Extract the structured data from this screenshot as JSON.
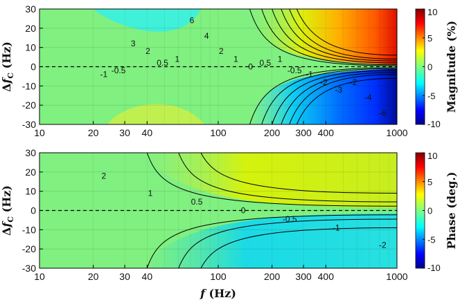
{
  "chart_data": [
    {
      "type": "contour",
      "ylabel_prefix": "Δ",
      "ylabel_var": "f",
      "ylabel_sub": "C",
      "ylabel_unit": "(Hz)",
      "xlabel_var": "",
      "xlabel_unit": "",
      "x_scale": "log",
      "xlim": [
        10,
        1000
      ],
      "ylim": [
        -30,
        30
      ],
      "x_ticks": [
        "10",
        "20",
        "30",
        "40",
        "100",
        "200",
        "300",
        "400",
        "1000"
      ],
      "x_tick_values": [
        10,
        20,
        30,
        40,
        100,
        200,
        300,
        400,
        1000
      ],
      "y_ticks": [
        "30",
        "20",
        "10",
        "0",
        "-10",
        "-20",
        "-30"
      ],
      "y_tick_values": [
        30,
        20,
        10,
        0,
        -10,
        -20,
        -30
      ],
      "colorbar_label": "Magnitude (%)",
      "colorbar_ticks": [
        "10",
        "5",
        "0",
        "-5",
        "-10"
      ],
      "clim": [
        -10,
        10
      ],
      "contour_labels": [
        "-1",
        "-0.5",
        "3",
        "2",
        "0.5",
        "1",
        "6",
        "4",
        "2",
        "1",
        "0",
        "0.5",
        "1",
        "-0.5",
        "-1",
        "-2",
        "-3",
        "-2",
        "-4",
        "-6"
      ],
      "grid": true
    },
    {
      "type": "contour",
      "ylabel_prefix": "Δ",
      "ylabel_var": "f",
      "ylabel_sub": "C",
      "ylabel_unit": "(Hz)",
      "xlabel_var": "f",
      "xlabel_unit": "(Hz)",
      "x_scale": "log",
      "xlim": [
        10,
        1000
      ],
      "ylim": [
        -30,
        30
      ],
      "x_ticks": [
        "10",
        "20",
        "30",
        "40",
        "100",
        "200",
        "300",
        "400",
        "1000"
      ],
      "x_tick_values": [
        10,
        20,
        30,
        40,
        100,
        200,
        300,
        400,
        1000
      ],
      "y_ticks": [
        "30",
        "20",
        "10",
        "0",
        "-10",
        "-20",
        "-30"
      ],
      "y_tick_values": [
        30,
        20,
        10,
        0,
        -10,
        -20,
        -30
      ],
      "colorbar_label": "Phase (deg.)",
      "colorbar_ticks": [
        "10",
        "5",
        "0",
        "-5",
        "-10"
      ],
      "clim": [
        -10,
        10
      ],
      "contour_labels": [
        "2",
        "1",
        "0.5",
        "0",
        "-0.5",
        "-1",
        "-2"
      ],
      "grid": true
    }
  ]
}
